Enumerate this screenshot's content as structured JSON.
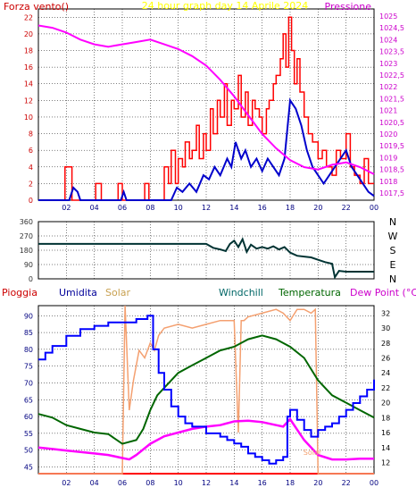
{
  "header": {
    "left": "Forza vento()",
    "title": "24 hour graph day   14 Aprile 2024",
    "right": "Pressione"
  },
  "labels_bottom": {
    "pioggia": "Pioggia",
    "umidita": "Umidita",
    "solar": "Solar",
    "windchill": "Windchill",
    "temperatura": "Temperatura",
    "dewpoint": "Dew Point (°C)",
    "solar_inline": "Solar"
  },
  "colors": {
    "wind": "#ff0000",
    "wind_avg": "#0000cc",
    "pressure": "#ff00ff",
    "direction": "#003333",
    "humidity": "#0000ff",
    "solar": "#f4a070",
    "temperature": "#006600",
    "dewpoint": "#ff00ff",
    "rain": "#ff0000",
    "windchill": "#006633",
    "grid": "#000000",
    "left_axis": "#cc0000",
    "right_axis": "#cc00cc"
  },
  "chart_data": [
    {
      "type": "line",
      "name": "wind_pressure",
      "x_ticks": [
        "02",
        "04",
        "06",
        "08",
        "10",
        "12",
        "14",
        "16",
        "18",
        "20",
        "22",
        "00"
      ],
      "y_left_ticks": [
        "0",
        "2",
        "4",
        "6",
        "8",
        "10",
        "12",
        "14",
        "16",
        "18",
        "20",
        "22"
      ],
      "y_left_range": [
        0,
        23
      ],
      "y_right_ticks": [
        "1017,5",
        "1018",
        "1018,5",
        "1019",
        "1019,5",
        "1020",
        "1020,5",
        "1021",
        "1021,5",
        "1022",
        "1022,5",
        "1023",
        "1023,5",
        "1024",
        "1024,5",
        "1025"
      ],
      "y_right_range": [
        1017.2,
        1025.3
      ],
      "x_range": [
        0,
        24
      ],
      "series": [
        {
          "key": "gust",
          "axis": "left",
          "x": [
            0,
            1.8,
            1.9,
            2.3,
            2.4,
            4.0,
            4.1,
            4.4,
            4.5,
            5.6,
            5.7,
            5.9,
            6.0,
            7.5,
            7.6,
            7.8,
            7.9,
            8.8,
            9.0,
            9.3,
            9.5,
            9.8,
            10.0,
            10.3,
            10.5,
            10.8,
            11.0,
            11.3,
            11.5,
            11.8,
            12.0,
            12.3,
            12.5,
            12.8,
            13.0,
            13.3,
            13.5,
            13.8,
            14.0,
            14.3,
            14.5,
            14.8,
            15.0,
            15.3,
            15.5,
            15.8,
            16.0,
            16.3,
            16.5,
            16.8,
            17.0,
            17.3,
            17.5,
            17.7,
            17.9,
            18.1,
            18.3,
            18.5,
            18.7,
            19.0,
            19.3,
            19.6,
            20.0,
            20.3,
            20.6,
            21.0,
            21.3,
            21.6,
            22.0,
            22.3,
            22.6,
            23.0,
            23.3,
            23.6,
            24.0
          ],
          "values": [
            0,
            0,
            4,
            4,
            0,
            0,
            2,
            2,
            0,
            0,
            2,
            2,
            0,
            0,
            2,
            2,
            0,
            0,
            4,
            2,
            6,
            2,
            5,
            4,
            7,
            5,
            6,
            9,
            5,
            8,
            6,
            11,
            8,
            12,
            10,
            14,
            9,
            12,
            11,
            15,
            10,
            13,
            9,
            12,
            11,
            10,
            8,
            11,
            12,
            14,
            15,
            17,
            20,
            16,
            22,
            18,
            14,
            17,
            13,
            10,
            8,
            7,
            5,
            6,
            4,
            3,
            6,
            5,
            8,
            4,
            3,
            2,
            5,
            2,
            2
          ]
        },
        {
          "key": "avg",
          "axis": "left",
          "x": [
            0,
            2.2,
            2.5,
            2.8,
            3.0,
            5.9,
            6.1,
            6.3,
            9.5,
            9.9,
            10.3,
            10.8,
            11.3,
            11.8,
            12.2,
            12.6,
            13.0,
            13.5,
            13.8,
            14.1,
            14.5,
            14.8,
            15.2,
            15.6,
            16.0,
            16.4,
            16.8,
            17.2,
            17.6,
            18.0,
            18.4,
            18.8,
            19.2,
            19.6,
            20.0,
            20.4,
            20.8,
            21.2,
            21.6,
            22.0,
            22.4,
            22.8,
            23.2,
            23.6,
            24.0
          ],
          "values": [
            0,
            0,
            1.5,
            1,
            0,
            0,
            1,
            0,
            0,
            1.5,
            1,
            2,
            1,
            3,
            2.5,
            4,
            3,
            5,
            4,
            7,
            5,
            6,
            4,
            5,
            3.5,
            5,
            4,
            3,
            5,
            12,
            11,
            9,
            6,
            4,
            3,
            2,
            3,
            4,
            5,
            6,
            4,
            3,
            2,
            1,
            0.5
          ]
        },
        {
          "key": "pressure",
          "axis": "right",
          "x": [
            0,
            1,
            2,
            3,
            4,
            5,
            6,
            7,
            8,
            9,
            10,
            11,
            12,
            13,
            14,
            15,
            16,
            17,
            18,
            19,
            20,
            21,
            22,
            23,
            24
          ],
          "values": [
            1024.6,
            1024.5,
            1024.3,
            1024.0,
            1023.8,
            1023.7,
            1023.8,
            1023.9,
            1024.0,
            1023.8,
            1023.6,
            1023.3,
            1022.9,
            1022.3,
            1021.6,
            1020.8,
            1020.0,
            1019.4,
            1018.9,
            1018.6,
            1018.5,
            1018.7,
            1018.8,
            1018.6,
            1018.3
          ]
        }
      ]
    },
    {
      "type": "line",
      "name": "wind_direction",
      "x_range": [
        0,
        24
      ],
      "y_ticks": [
        "360",
        "270",
        "180",
        "90",
        "0"
      ],
      "y_range": [
        0,
        360
      ],
      "direction_labels": [
        "N",
        "W",
        "S",
        "E",
        "N"
      ],
      "series": [
        {
          "key": "direction",
          "x": [
            0,
            12,
            12.5,
            13,
            13.4,
            13.7,
            14,
            14.3,
            14.6,
            14.9,
            15.2,
            15.6,
            16,
            16.4,
            16.8,
            17.2,
            17.6,
            18,
            18.5,
            19,
            19.5,
            20,
            20.5,
            21,
            21.2,
            21.5,
            22,
            23,
            24
          ],
          "values": [
            220,
            220,
            195,
            185,
            175,
            220,
            240,
            200,
            250,
            170,
            215,
            190,
            200,
            190,
            205,
            185,
            200,
            165,
            145,
            140,
            135,
            120,
            105,
            95,
            10,
            50,
            45,
            45,
            45
          ]
        }
      ]
    },
    {
      "type": "line",
      "name": "temp_humidity",
      "x_ticks": [
        "02",
        "04",
        "06",
        "08",
        "10",
        "12",
        "14",
        "16",
        "18",
        "20",
        "22",
        "00"
      ],
      "x_range": [
        0,
        24
      ],
      "y_left_ticks": [
        "45",
        "50",
        "55",
        "60",
        "65",
        "70",
        "75",
        "80",
        "85",
        "90"
      ],
      "y_left_range": [
        43,
        93
      ],
      "y_right_ticks": [
        "12",
        "14",
        "16",
        "18",
        "20",
        "22",
        "24",
        "26",
        "28",
        "30",
        "32"
      ],
      "y_right_range": [
        10.5,
        33
      ],
      "series": [
        {
          "key": "humidity",
          "axis": "left",
          "x": [
            0,
            0.5,
            1,
            2,
            3,
            4,
            5,
            6,
            7,
            7.8,
            8.2,
            8.6,
            9,
            9.5,
            10,
            10.5,
            11,
            11.5,
            12,
            12.5,
            13,
            13.5,
            14,
            14.5,
            15,
            15.5,
            16,
            16.5,
            17,
            17.5,
            17.8,
            18,
            18.5,
            19,
            19.5,
            20,
            20.5,
            21,
            21.5,
            22,
            22.5,
            23,
            23.5,
            24
          ],
          "values": [
            77,
            79,
            81,
            84,
            86,
            87,
            88,
            88,
            89,
            90,
            80,
            73,
            68,
            63,
            60,
            58,
            57,
            57,
            55,
            55,
            54,
            53,
            52,
            51,
            49,
            48,
            47,
            46,
            47,
            48,
            60,
            62,
            59,
            56,
            54,
            56,
            57,
            58,
            60,
            62,
            64,
            66,
            68,
            71
          ]
        },
        {
          "key": "solar",
          "axis": "right",
          "x": [
            0,
            6.0,
            6.2,
            6.5,
            6.8,
            7.2,
            7.6,
            8.0,
            8.3,
            8.6,
            9.0,
            10,
            11,
            12,
            13,
            14,
            14.3,
            14.5,
            14.7,
            15,
            16,
            17,
            17.5,
            18,
            18.5,
            19,
            19.5,
            19.8,
            20,
            24
          ],
          "values": [
            10.5,
            10.5,
            33,
            19,
            23,
            27,
            26,
            28,
            27,
            29,
            30,
            30.5,
            30,
            30.5,
            31,
            31,
            16,
            31,
            31,
            31.5,
            32,
            32.5,
            32,
            31,
            32.5,
            32.5,
            32,
            32.5,
            10.5,
            10.5
          ]
        },
        {
          "key": "temperature",
          "axis": "right",
          "x": [
            0,
            1,
            2,
            3,
            4,
            5,
            6,
            7,
            7.5,
            8,
            8.5,
            9,
            10,
            11,
            12,
            13,
            14,
            15,
            16,
            17,
            18,
            19,
            20,
            21,
            22,
            23,
            24
          ],
          "values": [
            18.5,
            18,
            17,
            16.5,
            16,
            15.8,
            14.5,
            15,
            16.5,
            19,
            21,
            22,
            24,
            25,
            26,
            27,
            27.5,
            28.5,
            29,
            28.5,
            27.5,
            26,
            23,
            21,
            20,
            19,
            18
          ]
        },
        {
          "key": "dewpoint",
          "axis": "right",
          "x": [
            0,
            1,
            2,
            3,
            4,
            5,
            6,
            6.5,
            7,
            8,
            9,
            10,
            11,
            12,
            13,
            14,
            15,
            16,
            17,
            17.5,
            18,
            18.5,
            19,
            20,
            21,
            22,
            23,
            24
          ],
          "values": [
            14,
            13.8,
            13.6,
            13.4,
            13.2,
            13,
            12.6,
            12.4,
            13,
            14.5,
            15.5,
            16,
            16.5,
            16.8,
            17,
            17.5,
            17.6,
            17.4,
            17,
            16.8,
            17.8,
            16.4,
            15,
            13,
            12.4,
            12.4,
            12.5,
            12.5
          ]
        },
        {
          "key": "rain",
          "axis": "left",
          "x": [
            0,
            24
          ],
          "values": [
            43,
            43
          ]
        }
      ]
    }
  ]
}
